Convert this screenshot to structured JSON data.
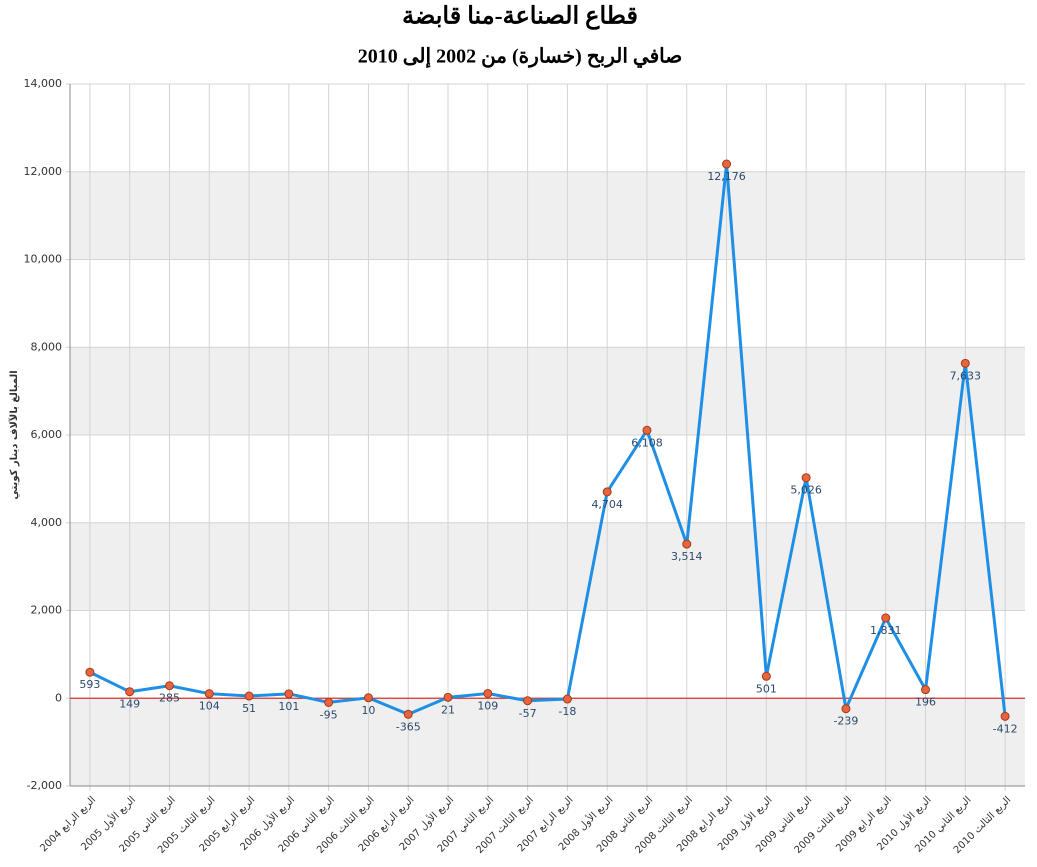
{
  "chart_data": {
    "type": "line",
    "title": "قطاع الصناعة-منا قابضة",
    "subtitle": "صافي الربح (خسارة) من 2002 إلى 2010",
    "y_label": "المبالغ بالآلاف دينار كويتي",
    "categories": [
      "الربع الرابع 2004",
      "الربع الأول 2005",
      "الربع الثاني 2005",
      "الربع الثالث 2005",
      "الربع الرابع 2005",
      "الربع الأول 2006",
      "الربع الثاني 2006",
      "الربع الثالث 2006",
      "الربع الرابع 2006",
      "الربع الأول 2007",
      "الربع الثاني 2007",
      "الربع الثالث 2007",
      "الربع الرابع 2007",
      "الربع الأول 2008",
      "الربع الثاني 2008",
      "الربع الثالث 2008",
      "الربع الرابع 2008",
      "الربع الأول 2009",
      "الربع الثاني 2009",
      "الربع الثالث 2009",
      "الربع الرابع 2009",
      "الربع الأول 2010",
      "الربع الثاني 2010",
      "الربع الثالث 2010"
    ],
    "values": [
      593,
      149,
      285,
      104,
      51,
      101,
      -95,
      10,
      -365,
      21,
      109,
      -57,
      -18,
      4704,
      6108,
      3514,
      12176,
      501,
      5026,
      -239,
      1831,
      196,
      7633,
      -412
    ],
    "value_labels": [
      "593",
      "149",
      "285",
      "104",
      "51",
      "101",
      "-95",
      "10",
      "-365",
      "21",
      "109",
      "-57",
      "-18",
      "4,704",
      "6,108",
      "3,514",
      "12,176",
      "501",
      "5,026",
      "-239",
      "1,831",
      "196",
      "7,633",
      "-412"
    ],
    "color": "#1e8fe6",
    "marker_color": "#e8643c",
    "ylim": [
      -2000,
      14000
    ],
    "yticks": [
      {
        "value": -2000,
        "label": "-2,000"
      },
      0,
      {
        "value": 2000,
        "label": "2,000"
      },
      {
        "value": 4000,
        "label": "4,000"
      },
      {
        "value": 6000,
        "label": "6,000"
      },
      {
        "value": 8000,
        "label": "8,000"
      },
      {
        "value": 10000,
        "label": "10,000"
      },
      {
        "value": 12000,
        "label": "12,000"
      },
      {
        "value": 14000,
        "label": "14,000"
      }
    ],
    "grid": true
  }
}
